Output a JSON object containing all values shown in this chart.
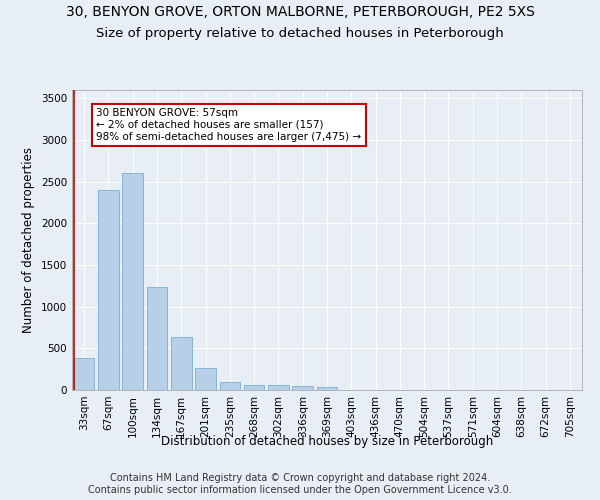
{
  "title": "30, BENYON GROVE, ORTON MALBORNE, PETERBOROUGH, PE2 5XS",
  "subtitle": "Size of property relative to detached houses in Peterborough",
  "xlabel": "Distribution of detached houses by size in Peterborough",
  "ylabel": "Number of detached properties",
  "footer_line1": "Contains HM Land Registry data © Crown copyright and database right 2024.",
  "footer_line2": "Contains public sector information licensed under the Open Government Licence v3.0.",
  "categories": [
    "33sqm",
    "67sqm",
    "100sqm",
    "134sqm",
    "167sqm",
    "201sqm",
    "235sqm",
    "268sqm",
    "302sqm",
    "336sqm",
    "369sqm",
    "403sqm",
    "436sqm",
    "470sqm",
    "504sqm",
    "537sqm",
    "571sqm",
    "604sqm",
    "638sqm",
    "672sqm",
    "705sqm"
  ],
  "values": [
    390,
    2400,
    2600,
    1240,
    640,
    260,
    100,
    60,
    60,
    45,
    35,
    0,
    0,
    0,
    0,
    0,
    0,
    0,
    0,
    0,
    0
  ],
  "bar_color": "#b8cfe8",
  "bar_edge_color": "#7aafd4",
  "highlight_line_color": "#cc0000",
  "annotation_text": "30 BENYON GROVE: 57sqm\n← 2% of detached houses are smaller (157)\n98% of semi-detached houses are larger (7,475) →",
  "annotation_box_color": "#ffffff",
  "annotation_box_edge_color": "#cc0000",
  "ylim": [
    0,
    3600
  ],
  "yticks": [
    0,
    500,
    1000,
    1500,
    2000,
    2500,
    3000,
    3500
  ],
  "bg_color": "#e8eef5",
  "plot_bg_color": "#e8eef5",
  "grid_color": "#ffffff",
  "title_fontsize": 10,
  "subtitle_fontsize": 9.5,
  "axis_label_fontsize": 8.5,
  "tick_fontsize": 7.5,
  "footer_fontsize": 7
}
